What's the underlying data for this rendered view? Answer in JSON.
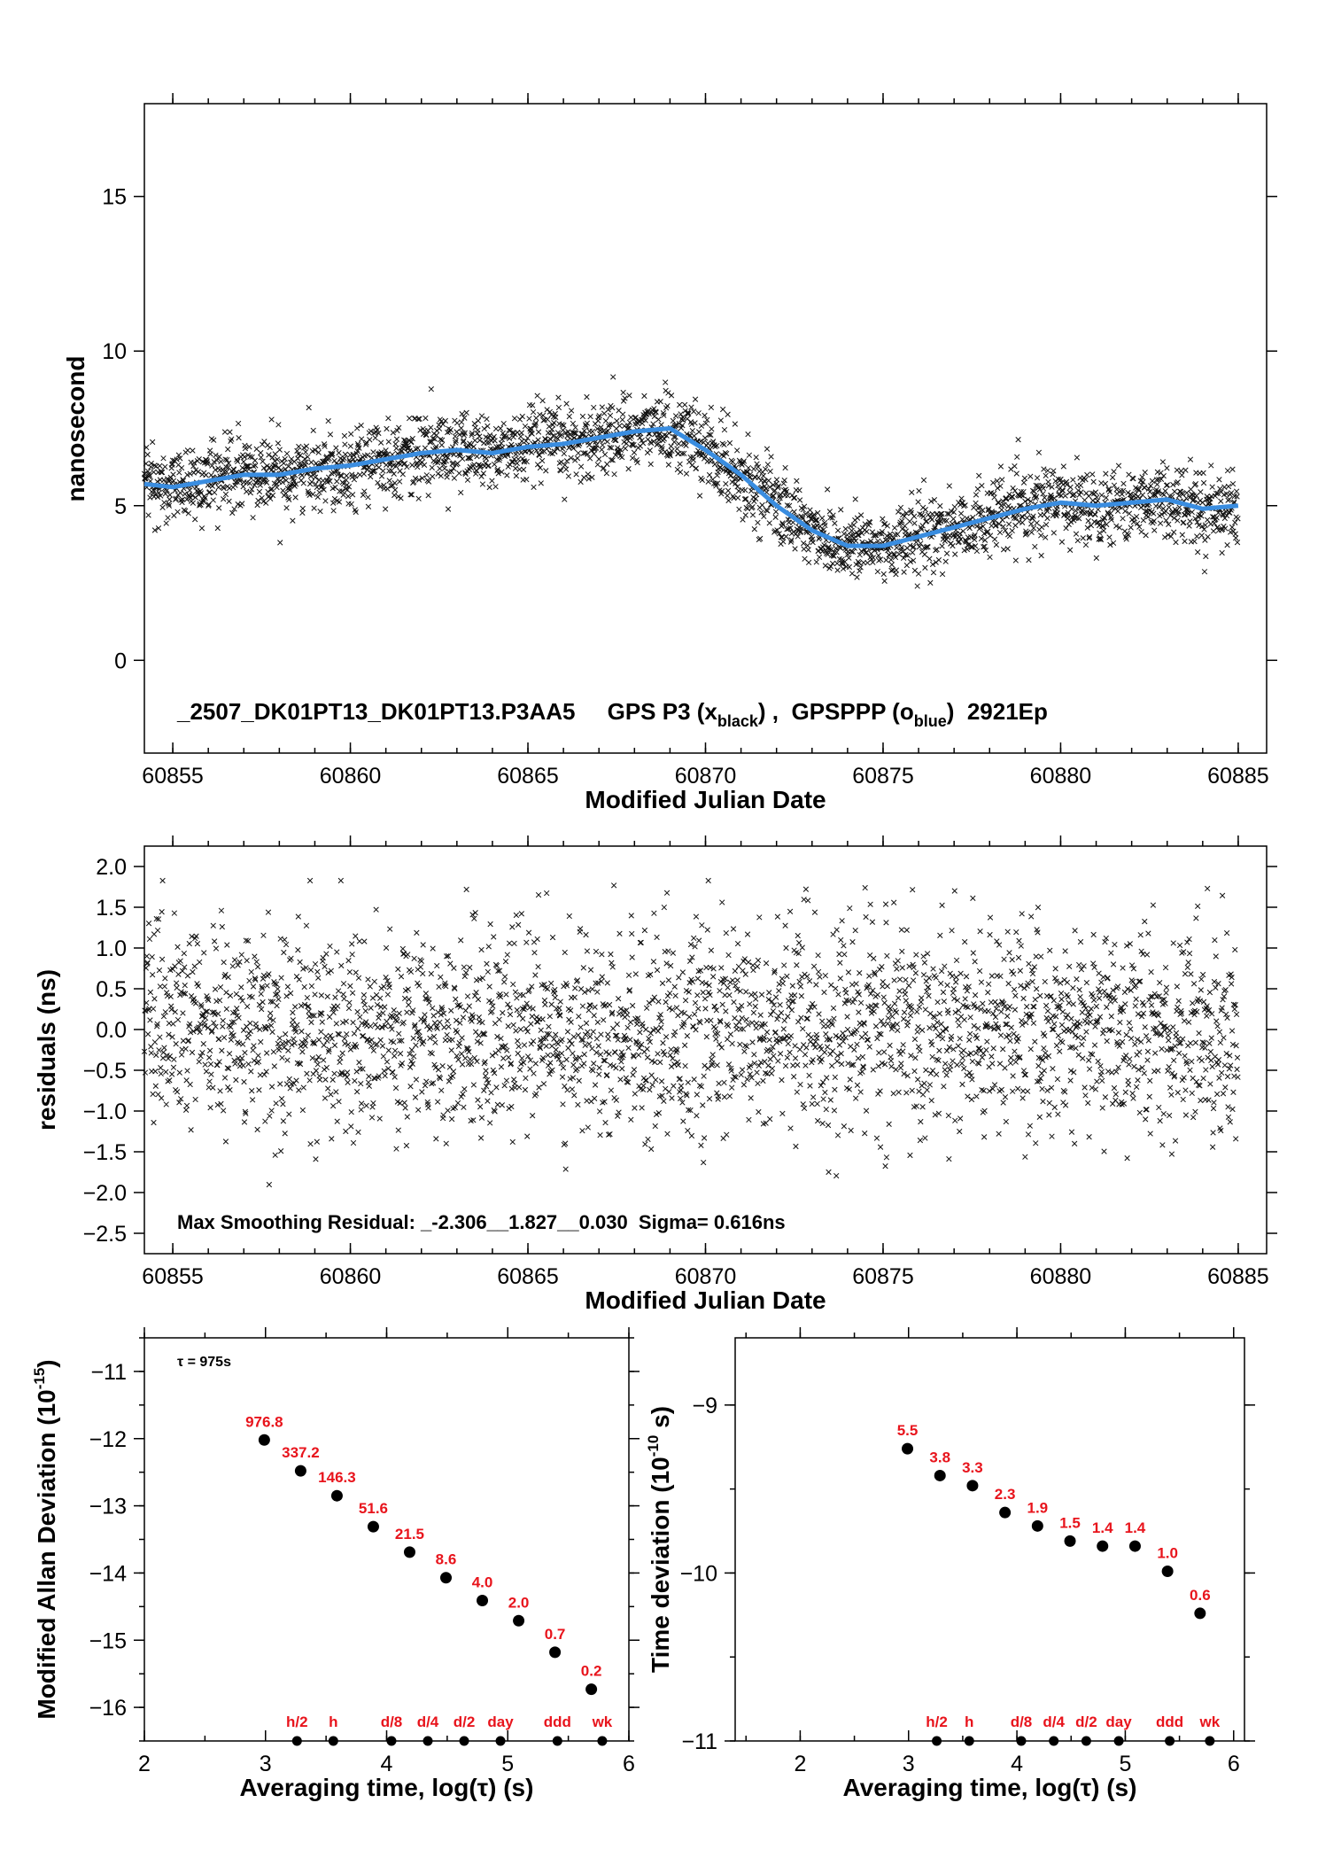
{
  "colors": {
    "blue": "#3a8de0",
    "red": "#e8141c",
    "black": "#000000"
  },
  "chart_data": [
    {
      "id": "time-series",
      "type": "scatter",
      "ylabel": "nanosecond",
      "xlabel": "Modified Julian Date",
      "xlim": [
        60854.2,
        60885.8
      ],
      "ylim": [
        -3,
        18
      ],
      "xticks": [
        60855,
        60860,
        60865,
        60870,
        60875,
        60880,
        60885
      ],
      "yticks": [
        0,
        5,
        10,
        15
      ],
      "annotation_prefix": "_2507_DK01PT13_DK01PT13.P3AA5     GPS P3 (x",
      "annotation_sub1": "black",
      "annotation_mid": ") ,  GPSPPP (o",
      "annotation_sub2": "blue",
      "annotation_suffix": ")  2921Ep",
      "series": [
        {
          "name": "GPS P3",
          "marker": "x",
          "color": "#000000",
          "x_range": [
            60854.2,
            60885.0
          ],
          "scatter_sigma_ns": 0.6
        },
        {
          "name": "GPSPPP",
          "color": "#3a8de0",
          "x": [
            60854.2,
            60855,
            60856,
            60857,
            60858,
            60859,
            60860,
            60861,
            60862,
            60863,
            60864,
            60865,
            60866,
            60867,
            60868,
            60869,
            60870,
            60871,
            60872,
            60873,
            60874,
            60875,
            60876,
            60877,
            60878,
            60879,
            60880,
            60881,
            60882,
            60883,
            60884,
            60885
          ],
          "y": [
            5.7,
            5.6,
            5.8,
            6.0,
            6.0,
            6.2,
            6.3,
            6.5,
            6.7,
            6.8,
            6.7,
            6.9,
            7.0,
            7.2,
            7.4,
            7.5,
            6.8,
            6.0,
            5.0,
            4.2,
            3.7,
            3.7,
            4.0,
            4.3,
            4.6,
            4.9,
            5.1,
            5.0,
            5.1,
            5.2,
            4.9,
            5.0
          ]
        }
      ]
    },
    {
      "id": "residuals",
      "type": "scatter",
      "ylabel": "residuals (ns)",
      "xlabel": "Modified Julian Date",
      "xlim": [
        60854.2,
        60885.8
      ],
      "ylim": [
        -2.75,
        2.25
      ],
      "xticks": [
        60855,
        60860,
        60865,
        60870,
        60875,
        60880,
        60885
      ],
      "yticks": [
        -2.5,
        -2.0,
        -1.5,
        -1.0,
        -0.5,
        0.0,
        0.5,
        1.0,
        1.5,
        2.0
      ],
      "ytick_labels": [
        "−2.5",
        "−2.0",
        "−1.5",
        "−1.0",
        "−0.5",
        "0.0",
        "0.5",
        "1.0",
        "1.5",
        "2.0"
      ],
      "annotation": "Max Smoothing Residual: _-2.306__1.827__0.030  Sigma= 0.616ns",
      "sigma_ns": 0.616,
      "min": -2.306,
      "max": 1.827
    },
    {
      "id": "mdev",
      "type": "scatter",
      "ylabel_main": "Modified Allan Deviation (10",
      "ylabel_sup": "-15",
      "ylabel_end": ")",
      "xlabel": "Averaging time, log(τ) (s)",
      "tau_note": "τ = 975s",
      "xlim": [
        2,
        6
      ],
      "ylim": [
        -16.5,
        -10.5
      ],
      "xticks": [
        2,
        3,
        4,
        5,
        6
      ],
      "yticks": [
        -16,
        -15,
        -14,
        -13,
        -12,
        -11
      ],
      "ytick_labels": [
        "−16",
        "−15",
        "−14",
        "−13",
        "−12",
        "−11"
      ],
      "points": [
        {
          "x": 2.99,
          "y": -12.02,
          "label": "976.8"
        },
        {
          "x": 3.29,
          "y": -12.48,
          "label": "337.2"
        },
        {
          "x": 3.59,
          "y": -12.85,
          "label": "146.3"
        },
        {
          "x": 3.89,
          "y": -13.31,
          "label": "51.6"
        },
        {
          "x": 4.19,
          "y": -13.69,
          "label": "21.5"
        },
        {
          "x": 4.49,
          "y": -14.07,
          "label": "8.6"
        },
        {
          "x": 4.79,
          "y": -14.41,
          "label": "4.0"
        },
        {
          "x": 5.09,
          "y": -14.71,
          "label": "2.0"
        },
        {
          "x": 5.39,
          "y": -15.18,
          "label": "0.7"
        },
        {
          "x": 5.69,
          "y": -15.73,
          "label": "0.2"
        }
      ],
      "markers": [
        {
          "x": 3.26,
          "label": "h/2"
        },
        {
          "x": 3.56,
          "label": "h"
        },
        {
          "x": 4.04,
          "label": "d/8"
        },
        {
          "x": 4.34,
          "label": "d/4"
        },
        {
          "x": 4.64,
          "label": "d/2"
        },
        {
          "x": 4.94,
          "label": "day"
        },
        {
          "x": 5.41,
          "label": "ddd"
        },
        {
          "x": 5.78,
          "label": "wk"
        }
      ]
    },
    {
      "id": "tdev",
      "type": "scatter",
      "ylabel_main": "Time deviation (10",
      "ylabel_sup": "-10",
      "ylabel_end": " s)",
      "xlabel": "Averaging time, log(τ) (s)",
      "xlim": [
        1.4,
        6.1
      ],
      "ylim": [
        -11.0,
        -8.6
      ],
      "xticks": [
        2,
        3,
        4,
        5,
        6
      ],
      "yticks": [
        -11,
        -10,
        -9
      ],
      "ytick_labels": [
        "−11",
        "−10",
        "−9"
      ],
      "points": [
        {
          "x": 2.99,
          "y": -9.26,
          "label": "5.5"
        },
        {
          "x": 3.29,
          "y": -9.42,
          "label": "3.8"
        },
        {
          "x": 3.59,
          "y": -9.48,
          "label": "3.3"
        },
        {
          "x": 3.89,
          "y": -9.64,
          "label": "2.3"
        },
        {
          "x": 4.19,
          "y": -9.72,
          "label": "1.9"
        },
        {
          "x": 4.49,
          "y": -9.81,
          "label": "1.5"
        },
        {
          "x": 4.79,
          "y": -9.84,
          "label": "1.4"
        },
        {
          "x": 5.09,
          "y": -9.84,
          "label": "1.4"
        },
        {
          "x": 5.39,
          "y": -9.99,
          "label": "1.0"
        },
        {
          "x": 5.69,
          "y": -10.24,
          "label": "0.6"
        }
      ],
      "markers": [
        {
          "x": 3.26,
          "label": "h/2"
        },
        {
          "x": 3.56,
          "label": "h"
        },
        {
          "x": 4.04,
          "label": "d/8"
        },
        {
          "x": 4.34,
          "label": "d/4"
        },
        {
          "x": 4.64,
          "label": "d/2"
        },
        {
          "x": 4.94,
          "label": "day"
        },
        {
          "x": 5.41,
          "label": "ddd"
        },
        {
          "x": 5.78,
          "label": "wk"
        }
      ]
    }
  ]
}
